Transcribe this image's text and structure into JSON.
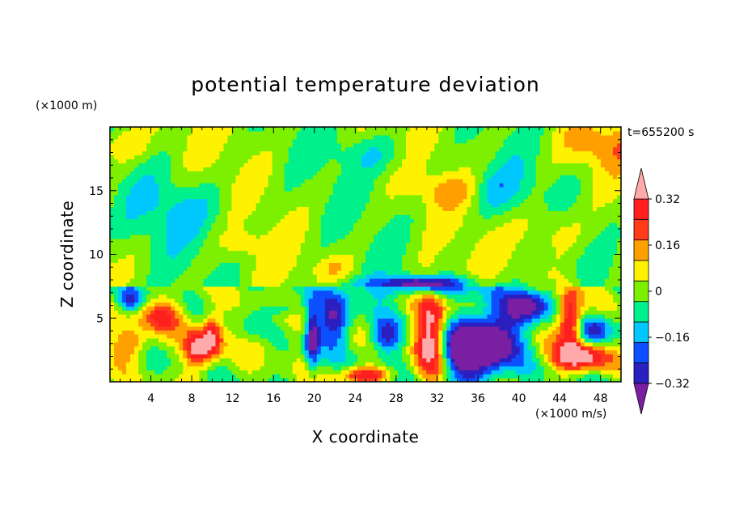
{
  "chart_data": {
    "type": "heatmap",
    "title": "potential temperature deviation",
    "time_label": "t=655200 s",
    "xlabel": "X coordinate",
    "ylabel": "Z coordinate",
    "x_unit": "(×1000 m/s)",
    "y_unit": "(×1000 m)",
    "xlim": [
      0,
      50
    ],
    "ylim": [
      0,
      20
    ],
    "x_ticks": [
      4,
      8,
      12,
      16,
      20,
      24,
      28,
      32,
      36,
      40,
      44,
      48
    ],
    "y_ticks": [
      5,
      10,
      15
    ],
    "colorbar": {
      "levels": [
        -0.4,
        -0.32,
        -0.24,
        -0.16,
        -0.08,
        0,
        0.08,
        0.16,
        0.24,
        0.32,
        0.4
      ],
      "labels": [
        "0.32",
        "0.16",
        "0",
        "−0.16",
        "−0.32"
      ],
      "label_values": [
        0.32,
        0.16,
        0,
        -0.16,
        -0.32
      ],
      "colors": [
        "#7a1fa2",
        "#2a1fbf",
        "#0c4fff",
        "#00c8ff",
        "#00f08c",
        "#7cf000",
        "#fff200",
        "#ffa000",
        "#ff3b1a",
        "#ff1f1f",
        "#ffaaaa"
      ],
      "over_color": "#ffaaaa",
      "under_color": "#7a1fa2"
    },
    "anomalies": [
      {
        "x": 35,
        "z": 2.5,
        "rx": 3.0,
        "rz": 2.4,
        "v": -0.55
      },
      {
        "x": 38,
        "z": 3.5,
        "rx": 2.5,
        "rz": 2.5,
        "v": -0.3
      },
      {
        "x": 22,
        "z": 5.0,
        "rx": 1.6,
        "rz": 2.0,
        "v": -0.36
      },
      {
        "x": 19.8,
        "z": 3.5,
        "rx": 0.7,
        "rz": 2.4,
        "v": -0.4
      },
      {
        "x": 27,
        "z": 3.6,
        "rx": 1.6,
        "rz": 1.3,
        "v": -0.3
      },
      {
        "x": 41,
        "z": 6.0,
        "rx": 2.2,
        "rz": 1.3,
        "v": -0.38
      },
      {
        "x": 47.5,
        "z": 4.0,
        "rx": 1.6,
        "rz": 1.2,
        "v": -0.3
      },
      {
        "x": 2,
        "z": 6.4,
        "rx": 1.2,
        "rz": 0.9,
        "v": -0.25
      },
      {
        "x": 31.5,
        "z": 3.6,
        "rx": 1.6,
        "rz": 3.6,
        "v": 0.5
      },
      {
        "x": 46,
        "z": 2.0,
        "rx": 2.5,
        "rz": 1.1,
        "v": 0.5
      },
      {
        "x": 45,
        "z": 5.0,
        "rx": 1.2,
        "rz": 2.4,
        "v": 0.45
      },
      {
        "x": 8.5,
        "z": 2.6,
        "rx": 1.2,
        "rz": 1.6,
        "v": 0.4
      },
      {
        "x": 10,
        "z": 3.5,
        "rx": 1.0,
        "rz": 1.8,
        "v": 0.38
      },
      {
        "x": 5,
        "z": 5.2,
        "rx": 2.4,
        "rz": 1.2,
        "v": 0.28
      },
      {
        "x": 2,
        "z": 3.0,
        "rx": 1.8,
        "rz": 1.3,
        "v": 0.25
      },
      {
        "x": 25,
        "z": 0.6,
        "rx": 2.4,
        "rz": 0.6,
        "v": 0.36
      },
      {
        "x": 15,
        "z": 3.0,
        "rx": 1.4,
        "rz": 1.0,
        "v": 0.1
      },
      {
        "x": 17,
        "z": 5.8,
        "rx": 1.6,
        "rz": 0.7,
        "v": -0.15
      },
      {
        "x": 30,
        "z": 7.4,
        "rx": 6.0,
        "rz": 0.9,
        "v": -0.2
      },
      {
        "x": 31,
        "z": 7.8,
        "rx": 4.0,
        "rz": 0.5,
        "v": -0.3
      },
      {
        "x": 7,
        "z": 13.5,
        "rx": 5.0,
        "rz": 2.5,
        "v": -0.12
      },
      {
        "x": 38,
        "z": 15.0,
        "rx": 3.0,
        "rz": 2.0,
        "v": -0.14
      },
      {
        "x": 26,
        "z": 18.0,
        "rx": 4.0,
        "rz": 1.5,
        "v": -0.1
      },
      {
        "x": 48,
        "z": 18.5,
        "rx": 4.0,
        "rz": 1.8,
        "v": 0.15
      },
      {
        "x": 1,
        "z": 18.6,
        "rx": 3.0,
        "rz": 1.4,
        "v": 0.13
      },
      {
        "x": 33,
        "z": 15.0,
        "rx": 3.0,
        "rz": 1.2,
        "v": 0.12
      },
      {
        "x": 13,
        "z": 10.8,
        "rx": 2.0,
        "rz": 1.0,
        "v": 0.09
      },
      {
        "x": 43,
        "z": 12.0,
        "rx": 3.0,
        "rz": 2.0,
        "v": 0.12
      },
      {
        "x": 22,
        "z": 9.0,
        "rx": 2.0,
        "rz": 1.0,
        "v": 0.1
      }
    ]
  }
}
